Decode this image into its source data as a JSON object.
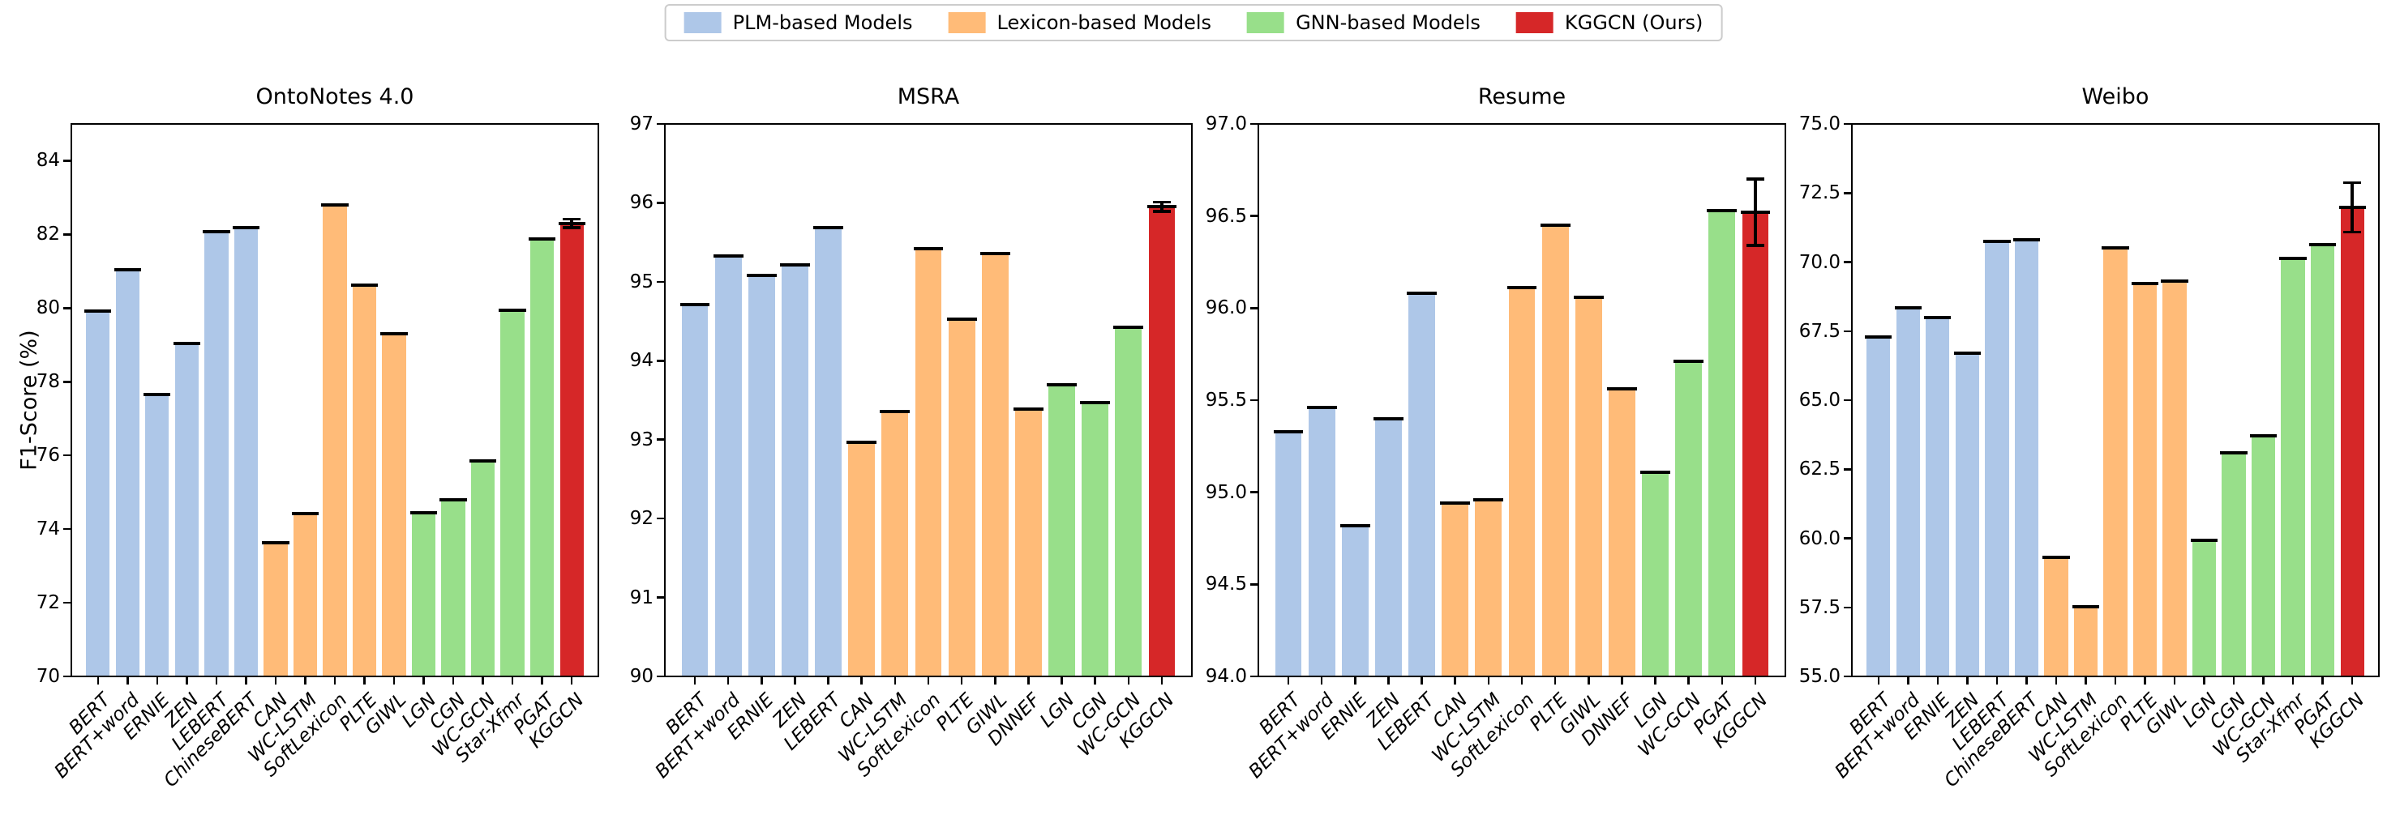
{
  "figure": {
    "ylabel": "F1-Score (%)",
    "colors": {
      "plm": "#aec7e8",
      "lexicon": "#ffbb78",
      "gnn": "#98df8a",
      "kggcn": "#d62728",
      "error_bar": "#000000",
      "legend_border": "#cccccc"
    },
    "legend": [
      {
        "label": "PLM-based Models",
        "color_key": "plm"
      },
      {
        "label": "Lexicon-based Models",
        "color_key": "lexicon"
      },
      {
        "label": "GNN-based Models",
        "color_key": "gnn"
      },
      {
        "label": "KGGCN (Ours)",
        "color_key": "kggcn"
      }
    ]
  },
  "chart_data": [
    {
      "type": "bar",
      "title": "OntoNotes 4.0",
      "ylabel": "F1-Score (%)",
      "ylim": [
        70,
        85
      ],
      "yticks": [
        70,
        72,
        74,
        76,
        78,
        80,
        82,
        84
      ],
      "ytick_format": "int",
      "grid": false,
      "categories": [
        "BERT",
        "BERT+word",
        "ERNIE",
        "ZEN",
        "LEBERT",
        "ChineseBERT",
        "CAN",
        "WC-LSTM",
        "SoftLexicon",
        "PLTE",
        "GIWL",
        "LGN",
        "CGN",
        "WC-GCN",
        "Star-Xfmr",
        "PGAT",
        "KGGCN"
      ],
      "values": [
        79.93,
        81.05,
        77.65,
        79.05,
        82.08,
        82.18,
        73.64,
        74.43,
        82.81,
        80.62,
        79.3,
        74.45,
        74.79,
        75.86,
        79.95,
        81.87,
        82.3
      ],
      "groups": [
        "plm",
        "plm",
        "plm",
        "plm",
        "plm",
        "plm",
        "lexicon",
        "lexicon",
        "lexicon",
        "lexicon",
        "lexicon",
        "gnn",
        "gnn",
        "gnn",
        "gnn",
        "gnn",
        "kggcn"
      ],
      "errors": [
        0,
        0,
        0,
        0,
        0,
        0,
        0,
        0,
        0,
        0,
        0,
        0,
        0,
        0,
        0,
        0,
        0.12
      ]
    },
    {
      "type": "bar",
      "title": "MSRA",
      "ylabel": "",
      "ylim": [
        90,
        97
      ],
      "yticks": [
        90,
        91,
        92,
        93,
        94,
        95,
        96,
        97
      ],
      "ytick_format": "int",
      "grid": false,
      "categories": [
        "BERT",
        "BERT+word",
        "ERNIE",
        "ZEN",
        "LEBERT",
        "CAN",
        "WC-LSTM",
        "SoftLexicon",
        "PLTE",
        "GIWL",
        "DNNEF",
        "LGN",
        "CGN",
        "WC-GCN",
        "KGGCN"
      ],
      "values": [
        94.71,
        95.33,
        95.08,
        95.21,
        95.69,
        92.97,
        93.36,
        95.42,
        94.53,
        95.36,
        93.39,
        93.69,
        93.47,
        94.42,
        95.95
      ],
      "groups": [
        "plm",
        "plm",
        "plm",
        "plm",
        "plm",
        "lexicon",
        "lexicon",
        "lexicon",
        "lexicon",
        "lexicon",
        "lexicon",
        "gnn",
        "gnn",
        "gnn",
        "kggcn"
      ],
      "errors": [
        0,
        0,
        0,
        0,
        0,
        0,
        0,
        0,
        0,
        0,
        0,
        0,
        0,
        0,
        0.06
      ]
    },
    {
      "type": "bar",
      "title": "Resume",
      "ylabel": "",
      "ylim": [
        94.0,
        97.0
      ],
      "yticks": [
        94.0,
        94.5,
        95.0,
        95.5,
        96.0,
        96.5,
        97.0
      ],
      "ytick_format": "1dp",
      "grid": false,
      "categories": [
        "BERT",
        "BERT+word",
        "ERNIE",
        "ZEN",
        "LEBERT",
        "CAN",
        "WC-LSTM",
        "SoftLexicon",
        "PLTE",
        "GIWL",
        "DNNEF",
        "LGN",
        "WC-GCN",
        "PGAT",
        "KGGCN"
      ],
      "values": [
        95.33,
        95.46,
        94.82,
        95.4,
        96.08,
        94.94,
        94.96,
        96.11,
        96.45,
        96.06,
        95.56,
        95.11,
        95.71,
        96.53,
        96.52
      ],
      "groups": [
        "plm",
        "plm",
        "plm",
        "plm",
        "plm",
        "lexicon",
        "lexicon",
        "lexicon",
        "lexicon",
        "lexicon",
        "lexicon",
        "gnn",
        "gnn",
        "gnn",
        "kggcn"
      ],
      "errors": [
        0,
        0,
        0,
        0,
        0,
        0,
        0,
        0,
        0,
        0,
        0,
        0,
        0,
        0,
        0.18
      ]
    },
    {
      "type": "bar",
      "title": "Weibo",
      "ylabel": "",
      "ylim": [
        55.0,
        75.0
      ],
      "yticks": [
        55.0,
        57.5,
        60.0,
        62.5,
        65.0,
        67.5,
        70.0,
        72.5,
        75.0
      ],
      "ytick_format": "1dp",
      "grid": false,
      "categories": [
        "BERT",
        "BERT+word",
        "ERNIE",
        "ZEN",
        "LEBERT",
        "ChineseBERT",
        "CAN",
        "WC-LSTM",
        "SoftLexicon",
        "PLTE",
        "GIWL",
        "LGN",
        "CGN",
        "WC-GCN",
        "Star-Xfmr",
        "PGAT",
        "KGGCN"
      ],
      "values": [
        67.3,
        68.33,
        67.98,
        66.7,
        70.75,
        70.81,
        59.3,
        57.51,
        70.5,
        69.21,
        69.32,
        59.92,
        63.09,
        63.7,
        70.14,
        70.64,
        71.98
      ],
      "groups": [
        "plm",
        "plm",
        "plm",
        "plm",
        "plm",
        "plm",
        "lexicon",
        "lexicon",
        "lexicon",
        "lexicon",
        "lexicon",
        "gnn",
        "gnn",
        "gnn",
        "gnn",
        "gnn",
        "kggcn"
      ],
      "errors": [
        0,
        0,
        0,
        0,
        0,
        0,
        0,
        0,
        0,
        0,
        0,
        0,
        0,
        0,
        0,
        0,
        0.9
      ]
    }
  ]
}
